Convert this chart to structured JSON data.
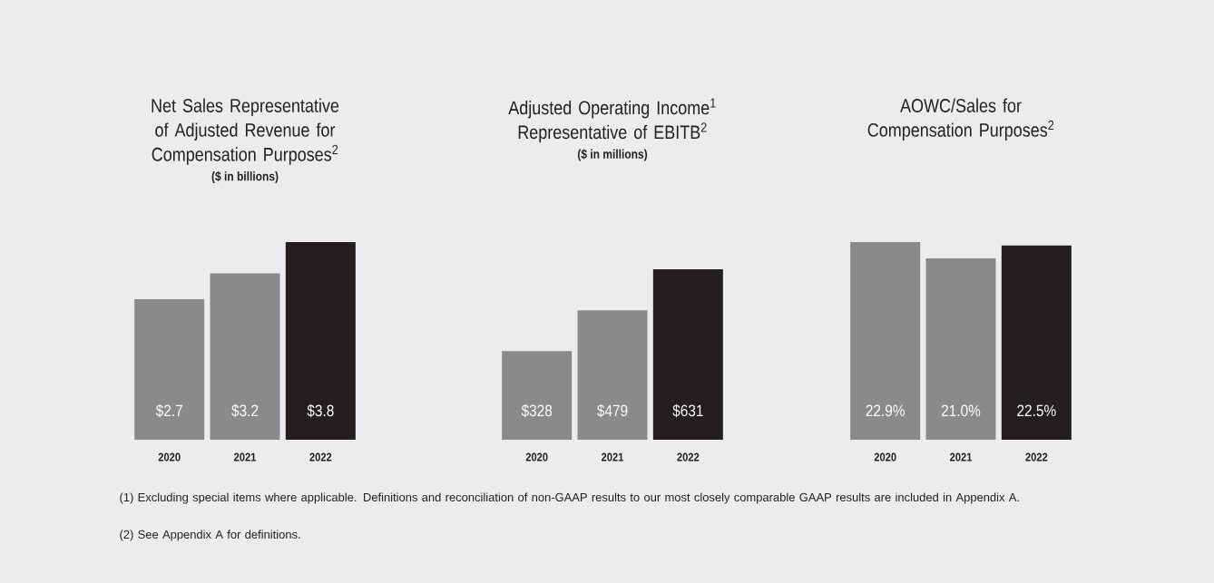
{
  "chart_data": [
    {
      "type": "bar",
      "title": "Net Sales Representative of Adjusted Revenue for Compensation Purposes$^{2}$",
      "subtitle": "($ in billions)",
      "categories": [
        "2020",
        "2021",
        "2022"
      ],
      "values": [
        2.7,
        3.2,
        3.8
      ],
      "colors": [
        "#8a8a8d",
        "#8a8a8d",
        "#231f20"
      ],
      "value_labels": [
        "$2.7",
        "$3.2",
        "$3.8"
      ],
      "annotations": [
        "(1) Excluding special items where applicable. Definitions and reconciliation of non-GAAP results to our most closely comparable GAAP results are included in Appendix A.",
        "(2) See Appendix A for definitions."
      ]
    },
    {
      "type": "bar",
      "title": "Adjusted Operating Income$^{1}$ Representative of EBITB$^{2}$",
      "subtitle": "($ in millions)",
      "categories": [
        "2020",
        "2021",
        "2022"
      ],
      "values": [
        328,
        479,
        631
      ],
      "colors": [
        "#8a8a8d",
        "#8a8a8d",
        "#231f20"
      ],
      "value_labels": [
        "$328",
        "$479",
        "$631"
      ]
    },
    {
      "type": "bar",
      "title": "AOWC/Sales for Compensation Purposes$^{2}$",
      "categories": [
        "2020",
        "2021",
        "2022"
      ],
      "values": [
        22.9,
        21.0,
        22.5
      ],
      "colors": [
        "#8a8a8d",
        "#8a8a8d",
        "#231f20"
      ],
      "value_labels": [
        "22.9%",
        "21.0%",
        "22.5%"
      ]
    }
  ]
}
